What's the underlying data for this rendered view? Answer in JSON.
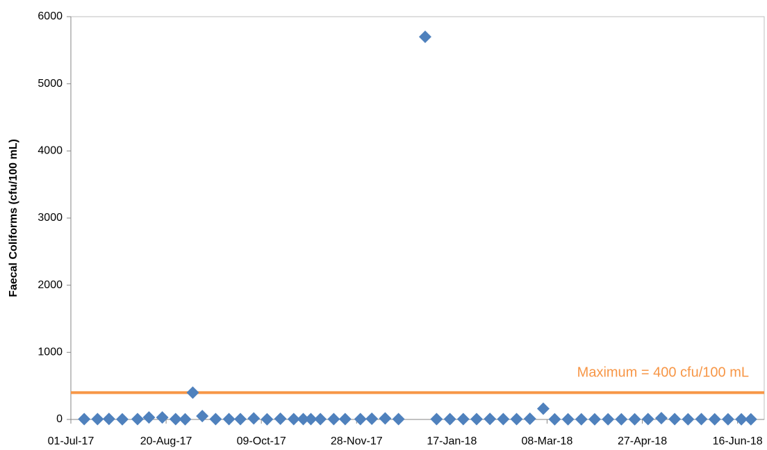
{
  "chart_data": {
    "type": "scatter",
    "y_label": "Faecal Coliforms (cfu/100 mL)",
    "series": [
      {
        "name": "Faecal Coliforms",
        "color": "#4f81bd",
        "x": [
          "2017-07-08",
          "2017-07-15",
          "2017-07-21",
          "2017-07-28",
          "2017-08-05",
          "2017-08-11",
          "2017-08-18",
          "2017-08-25",
          "2017-08-30",
          "2017-09-03",
          "2017-09-08",
          "2017-09-15",
          "2017-09-22",
          "2017-09-28",
          "2017-10-05",
          "2017-10-12",
          "2017-10-19",
          "2017-10-26",
          "2017-10-31",
          "2017-11-04",
          "2017-11-09",
          "2017-11-16",
          "2017-11-22",
          "2017-11-30",
          "2017-12-06",
          "2017-12-13",
          "2017-12-20",
          "2018-01-03",
          "2018-01-09",
          "2018-01-16",
          "2018-01-23",
          "2018-01-30",
          "2018-02-06",
          "2018-02-13",
          "2018-02-20",
          "2018-02-27",
          "2018-03-06",
          "2018-03-12",
          "2018-03-19",
          "2018-03-26",
          "2018-04-02",
          "2018-04-09",
          "2018-04-16",
          "2018-04-23",
          "2018-04-30",
          "2018-05-07",
          "2018-05-14",
          "2018-05-21",
          "2018-05-28",
          "2018-06-04",
          "2018-06-11",
          "2018-06-18",
          "2018-06-23"
        ],
        "values": [
          5,
          5,
          8,
          3,
          5,
          30,
          30,
          5,
          3,
          400,
          50,
          5,
          5,
          5,
          15,
          3,
          10,
          5,
          5,
          5,
          5,
          5,
          5,
          5,
          10,
          15,
          5,
          5700,
          5,
          5,
          5,
          5,
          8,
          5,
          5,
          10,
          160,
          3,
          3,
          3,
          3,
          3,
          3,
          3,
          5,
          20,
          5,
          3,
          5,
          3,
          3,
          3,
          3
        ]
      }
    ],
    "reference_line": {
      "value": 400,
      "label": "Maximum = 400 cfu/100 mL",
      "color": "#f79646"
    },
    "xlim": [
      "2017-07-01",
      "2018-06-30"
    ],
    "xticks": [
      {
        "value": "2017-07-01",
        "label": "01-Jul-17"
      },
      {
        "value": "2017-08-20",
        "label": "20-Aug-17"
      },
      {
        "value": "2017-10-09",
        "label": "09-Oct-17"
      },
      {
        "value": "2017-11-28",
        "label": "28-Nov-17"
      },
      {
        "value": "2018-01-17",
        "label": "17-Jan-18"
      },
      {
        "value": "2018-03-08",
        "label": "08-Mar-18"
      },
      {
        "value": "2018-04-27",
        "label": "27-Apr-18"
      },
      {
        "value": "2018-06-16",
        "label": "16-Jun-18"
      }
    ],
    "ylim": [
      0,
      6000
    ],
    "yticks": [
      0,
      1000,
      2000,
      3000,
      4000,
      5000,
      6000
    ],
    "grid": false
  }
}
